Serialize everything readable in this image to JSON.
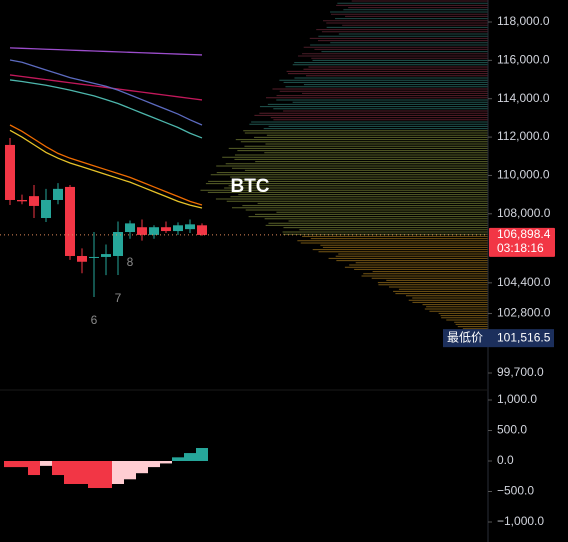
{
  "chart_data": [
    {
      "type": "candlestick",
      "title": "BTC",
      "open": [
        111590,
        108720,
        108920,
        107780,
        108720,
        109400,
        105800,
        105700,
        105750,
        105800,
        107050,
        107300,
        106900,
        107300,
        107100,
        107200,
        107400
      ],
      "high": [
        111955,
        109000,
        109500,
        109300,
        109600,
        109500,
        106200,
        107050,
        106400,
        107600,
        107650,
        107700,
        107400,
        107600,
        107550,
        107700,
        107500
      ],
      "low": [
        108460,
        108500,
        107780,
        107570,
        108500,
        105600,
        104900,
        103665,
        104800,
        104810,
        106700,
        106600,
        106700,
        107000,
        106900,
        107000,
        106850
      ],
      "close": [
        108720,
        108650,
        108410,
        108720,
        109300,
        105800,
        105500,
        105750,
        105900,
        107050,
        107500,
        106900,
        107300,
        107100,
        107400,
        107450,
        106898.4
      ],
      "up_color": "#26a69a",
      "down_color": "#f23645",
      "lines": [
        {
          "color": "#9c4dcc",
          "values": [
            116650,
            116627,
            116604,
            116581,
            116558,
            116535,
            116512,
            116489,
            116466,
            116443,
            116420,
            116397,
            116374,
            116351,
            116328,
            116305,
            116282
          ]
        },
        {
          "color": "#c2185b",
          "values": [
            115240,
            115159,
            115077,
            114996,
            114914,
            114833,
            114751,
            114670,
            114588,
            114507,
            114425,
            114344,
            114262,
            114181,
            114099,
            114018,
            113936
          ]
        },
        {
          "color": "#5c6bc0",
          "values": [
            116020,
            115900,
            115700,
            115500,
            115300,
            115100,
            114950,
            114800,
            114650,
            114450,
            114200,
            113950,
            113700,
            113450,
            113200,
            112900,
            112630
          ]
        },
        {
          "color": "#4db6ac",
          "values": [
            114980,
            114900,
            114800,
            114700,
            114580,
            114450,
            114300,
            114150,
            113950,
            113750,
            113500,
            113250,
            113000,
            112750,
            112500,
            112200,
            111955
          ]
        },
        {
          "color": "#ef6c00",
          "values": [
            112630,
            112300,
            111900,
            111500,
            111150,
            110900,
            110700,
            110500,
            110300,
            110100,
            109900,
            109650,
            109400,
            109150,
            108900,
            108650,
            108460
          ]
        },
        {
          "color": "#e6c229",
          "values": [
            112350,
            112000,
            111600,
            111200,
            110900,
            110650,
            110450,
            110250,
            110050,
            109850,
            109650,
            109400,
            109150,
            108900,
            108650,
            108450,
            108300
          ]
        }
      ],
      "annotations": [
        "6",
        "7",
        "8"
      ],
      "ylim": [
        98813,
        119147
      ],
      "yticks": [
        {
          "value": 118000,
          "label": "118,000.0"
        },
        {
          "value": 116000,
          "label": "116,000.0"
        },
        {
          "value": 114000,
          "label": "114,000.0"
        },
        {
          "value": 112000,
          "label": "112,000.0"
        },
        {
          "value": 110000,
          "label": "110,000.0"
        },
        {
          "value": 108000,
          "label": "108,000.0"
        },
        {
          "value": 104400,
          "label": "104,400.0"
        },
        {
          "value": 102800,
          "label": "102,800.0"
        },
        {
          "value": 99700,
          "label": "99,700.0"
        }
      ],
      "last_price": {
        "value": 106898.4,
        "label": "106,898.4"
      },
      "countdown": "03:18:16",
      "low_marker": {
        "label": "最低价",
        "value": 101516.5,
        "value_label": "101,516.5"
      }
    },
    {
      "type": "bar",
      "values": [
        -100,
        -100,
        -230,
        -80,
        -230,
        -377,
        -377,
        -443,
        -443,
        -377,
        -300,
        -200,
        -100,
        -40,
        60,
        130,
        213
      ],
      "colors": [
        "#f23645",
        "#f23645",
        "#f23645",
        "#ffcdd2",
        "#f23645",
        "#f23645",
        "#f23645",
        "#f23645",
        "#f23645",
        "#ffcdd2",
        "#ffcdd2",
        "#ffcdd2",
        "#ffcdd2",
        "#ffcdd2",
        "#26a69a",
        "#26a69a",
        "#26a69a"
      ],
      "ylim": [
        -1328,
        1246
      ],
      "yticks": [
        {
          "value": 1000,
          "label": "1,000.0"
        },
        {
          "value": 500,
          "label": "500.0"
        },
        {
          "value": 0,
          "label": "0.0"
        },
        {
          "value": -500,
          "label": "−500.0"
        },
        {
          "value": -1000,
          "label": "−1,000.0"
        }
      ]
    }
  ]
}
